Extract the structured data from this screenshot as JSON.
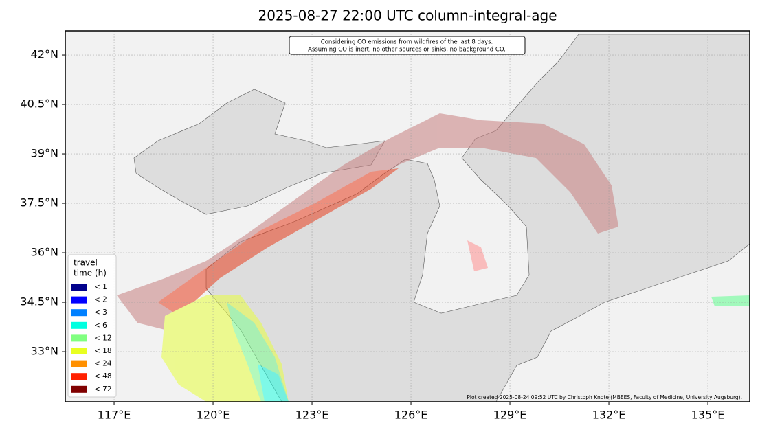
{
  "map": {
    "title": "2025-08-27 22:00 UTC column-integral-age",
    "note": [
      "Considering CO emissions from wildfires of the last 8 days.",
      "Assuming CO is inert, no other sources or sinks, no background CO."
    ],
    "credit": "Plot created 2025-08-24 09:52 UTC by Christoph Knote (MBEES, Faculty of Medicine, University Augsburg).",
    "xlim": [
      115.52,
      136.27
    ],
    "ylim": [
      31.48,
      42.73
    ],
    "xticks": [
      {
        "value": 117,
        "label": "117°E"
      },
      {
        "value": 120,
        "label": "120°E"
      },
      {
        "value": 123,
        "label": "123°E"
      },
      {
        "value": 126,
        "label": "126°E"
      },
      {
        "value": 129,
        "label": "129°E"
      },
      {
        "value": 132,
        "label": "132°E"
      },
      {
        "value": 135,
        "label": "135°E"
      }
    ],
    "yticks": [
      {
        "value": 33,
        "label": "33°N"
      },
      {
        "value": 34.5,
        "label": "34.5°N"
      },
      {
        "value": 36,
        "label": "36°N"
      },
      {
        "value": 37.5,
        "label": "37.5°N"
      },
      {
        "value": 39,
        "label": "39°N"
      },
      {
        "value": 40.5,
        "label": "40.5°N"
      },
      {
        "value": 42,
        "label": "42°N"
      }
    ],
    "grid": true,
    "legend": {
      "title": [
        "travel",
        "time (h)"
      ],
      "entries": [
        {
          "label": "<  1",
          "color": "#00008b"
        },
        {
          "label": "<  2",
          "color": "#0000ff"
        },
        {
          "label": "<  3",
          "color": "#0080ff"
        },
        {
          "label": "<  6",
          "color": "#00ffe0"
        },
        {
          "label": "< 12",
          "color": "#80ff80"
        },
        {
          "label": "< 18",
          "color": "#e8ff20"
        },
        {
          "label": "< 24",
          "color": "#ff9000"
        },
        {
          "label": "< 48",
          "color": "#ff2000"
        },
        {
          "label": "< 72",
          "color": "#800000"
        }
      ]
    }
  }
}
